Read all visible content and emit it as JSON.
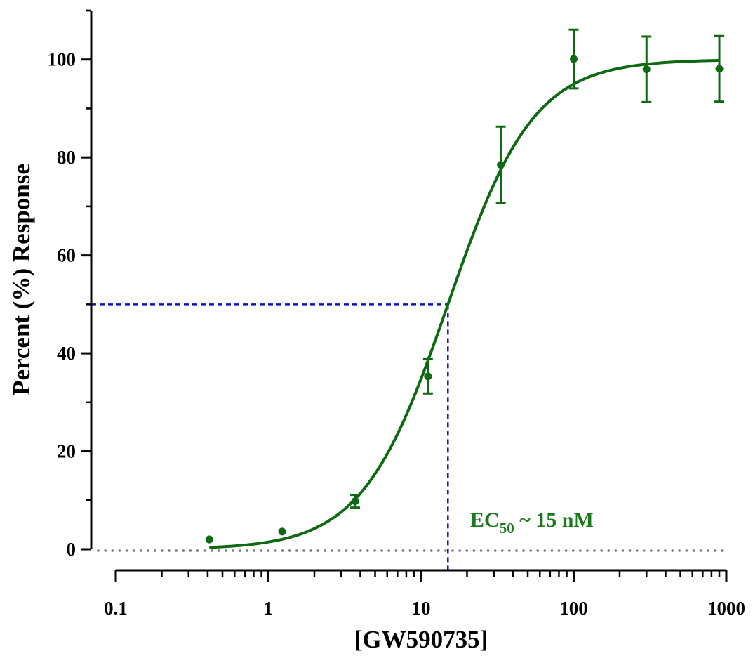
{
  "chart_data": {
    "type": "scatter",
    "title": "",
    "xlabel": "[GW590735]",
    "ylabel": "Percent (%) Response",
    "xscale": "log",
    "xlim": [
      0.1,
      1000
    ],
    "ylim": [
      0,
      110
    ],
    "x_ticks": [
      {
        "value": 0.1,
        "label": "0.1"
      },
      {
        "value": 1,
        "label": "1"
      },
      {
        "value": 10,
        "label": "10"
      },
      {
        "value": 100,
        "label": "100"
      },
      {
        "value": 1000,
        "label": "1000"
      }
    ],
    "y_ticks": [
      {
        "value": 0,
        "label": "0"
      },
      {
        "value": 20,
        "label": "20"
      },
      {
        "value": 40,
        "label": "40"
      },
      {
        "value": 60,
        "label": "60"
      },
      {
        "value": 80,
        "label": "80"
      },
      {
        "value": 100,
        "label": "100"
      }
    ],
    "grid": false,
    "series": [
      {
        "color": "#0e6a12",
        "points": [
          {
            "x": 0.41,
            "y": 2.0,
            "err": 0
          },
          {
            "x": 1.23,
            "y": 3.6,
            "err": 0
          },
          {
            "x": 3.7,
            "y": 9.8,
            "err": 1.3
          },
          {
            "x": 11.1,
            "y": 35.3,
            "err": 3.5
          },
          {
            "x": 33.3,
            "y": 78.5,
            "err": 7.8
          },
          {
            "x": 100,
            "y": 100.1,
            "err": 6.0
          },
          {
            "x": 300,
            "y": 98.0,
            "err": 6.7
          },
          {
            "x": 900,
            "y": 98.1,
            "err": 6.7
          }
        ],
        "fit": {
          "model": "sigmoid",
          "bottom": 0,
          "top": 100,
          "ec50": 15,
          "hill": 1.55,
          "x_range": [
            0.41,
            900
          ]
        }
      }
    ],
    "reference_lines": [
      {
        "kind": "horizontal-dotted",
        "y": 0,
        "color": "#777777"
      },
      {
        "kind": "ec50-guide",
        "x": 15,
        "y": 50,
        "color": "#1010c0"
      }
    ],
    "annotation": {
      "prefix": "EC",
      "subscript": "50",
      "suffix": " ~ 15 nM",
      "color": "#1a7a1a"
    }
  }
}
